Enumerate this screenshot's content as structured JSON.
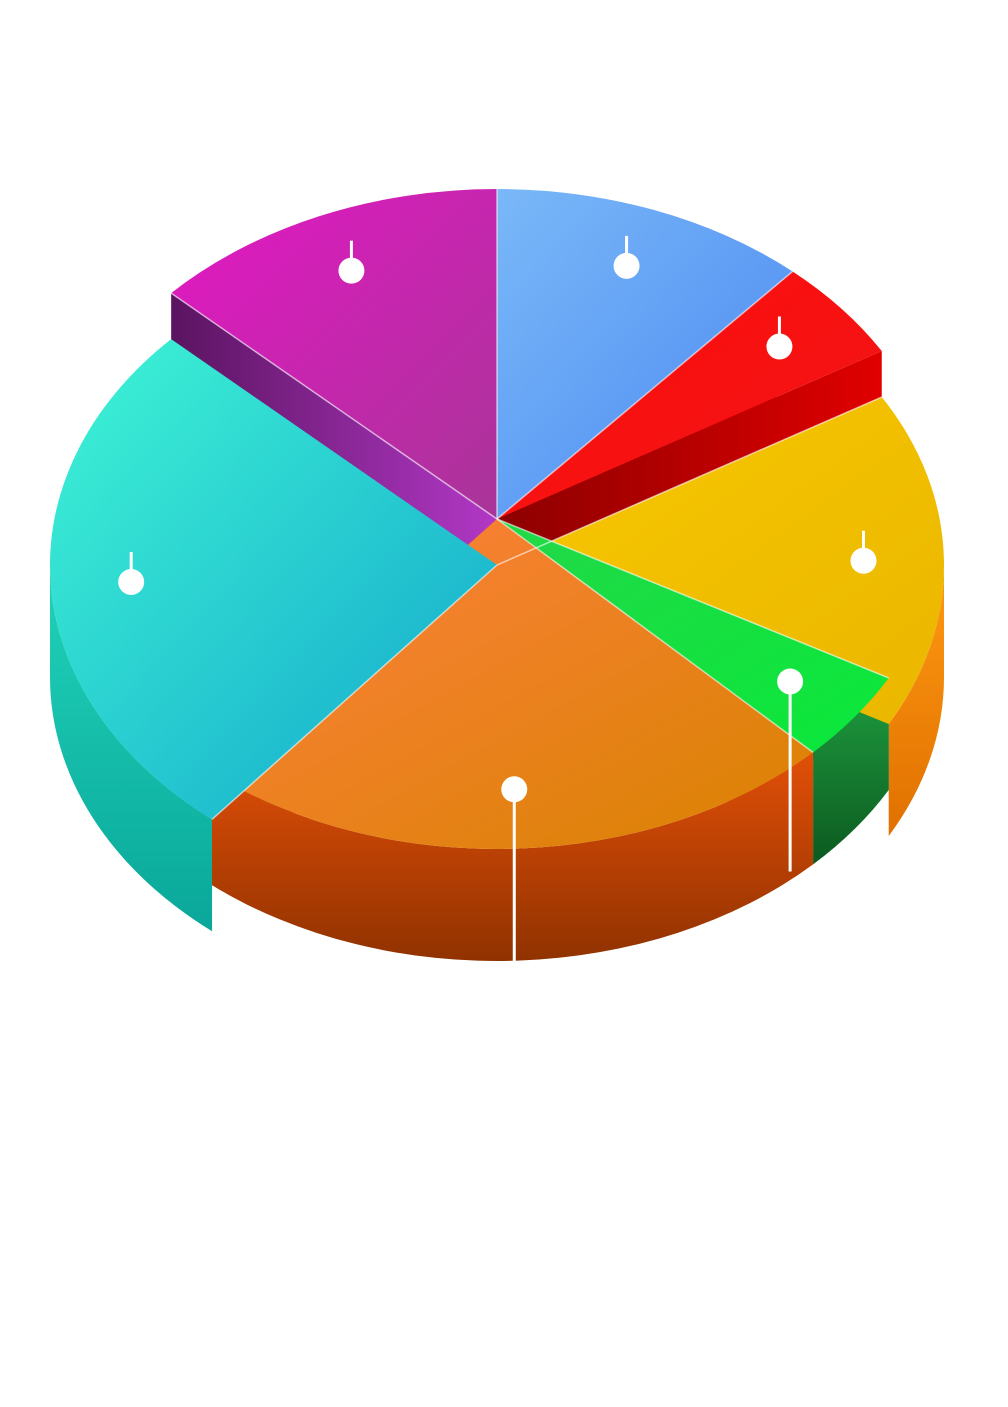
{
  "chart_data": {
    "type": "pie",
    "style": "3d-exploded",
    "title": "",
    "legend": "none",
    "slices": [
      {
        "key": "blue",
        "value": 11.5,
        "exploded": true,
        "colors": {
          "top_a": "#7ab8f8",
          "top_b": "#4a88f2",
          "side": "#2c36d8",
          "side_dark": "#1a1fa8"
        }
      },
      {
        "key": "red",
        "value": 5.0,
        "exploded": true,
        "colors": {
          "top_a": "#ff0d0d",
          "top_b": "#f01515",
          "side": "#e00000",
          "side_dark": "#8c0000"
        }
      },
      {
        "key": "yellow",
        "value": 16.5,
        "exploded": false,
        "colors": {
          "top_a": "#f8c800",
          "top_b": "#eab600",
          "side": "#ff9a12",
          "side_dark": "#e07000"
        }
      },
      {
        "key": "green",
        "value": 4.5,
        "exploded": true,
        "colors": {
          "top_a": "#22d848",
          "top_b": "#0ae83a",
          "side": "#1f9e40",
          "side_dark": "#0c5a20"
        }
      },
      {
        "key": "orange",
        "value": 23.5,
        "exploded": true,
        "colors": {
          "top_a": "#ff8040",
          "top_b": "#d88200",
          "side": "#e24f08",
          "side_dark": "#903200"
        }
      },
      {
        "key": "teal",
        "value": 26.0,
        "exploded": false,
        "colors": {
          "top_a": "#3ff5d5",
          "top_b": "#12a6cc",
          "side": "#20d3b8",
          "side_dark": "#0aa79a"
        }
      },
      {
        "key": "magenta",
        "value": 13.0,
        "exploded": true,
        "colors": {
          "top_a": "#e417c4",
          "top_b": "#a83598",
          "side": "#b238c6",
          "side_dark": "#5a1460"
        }
      }
    ]
  }
}
